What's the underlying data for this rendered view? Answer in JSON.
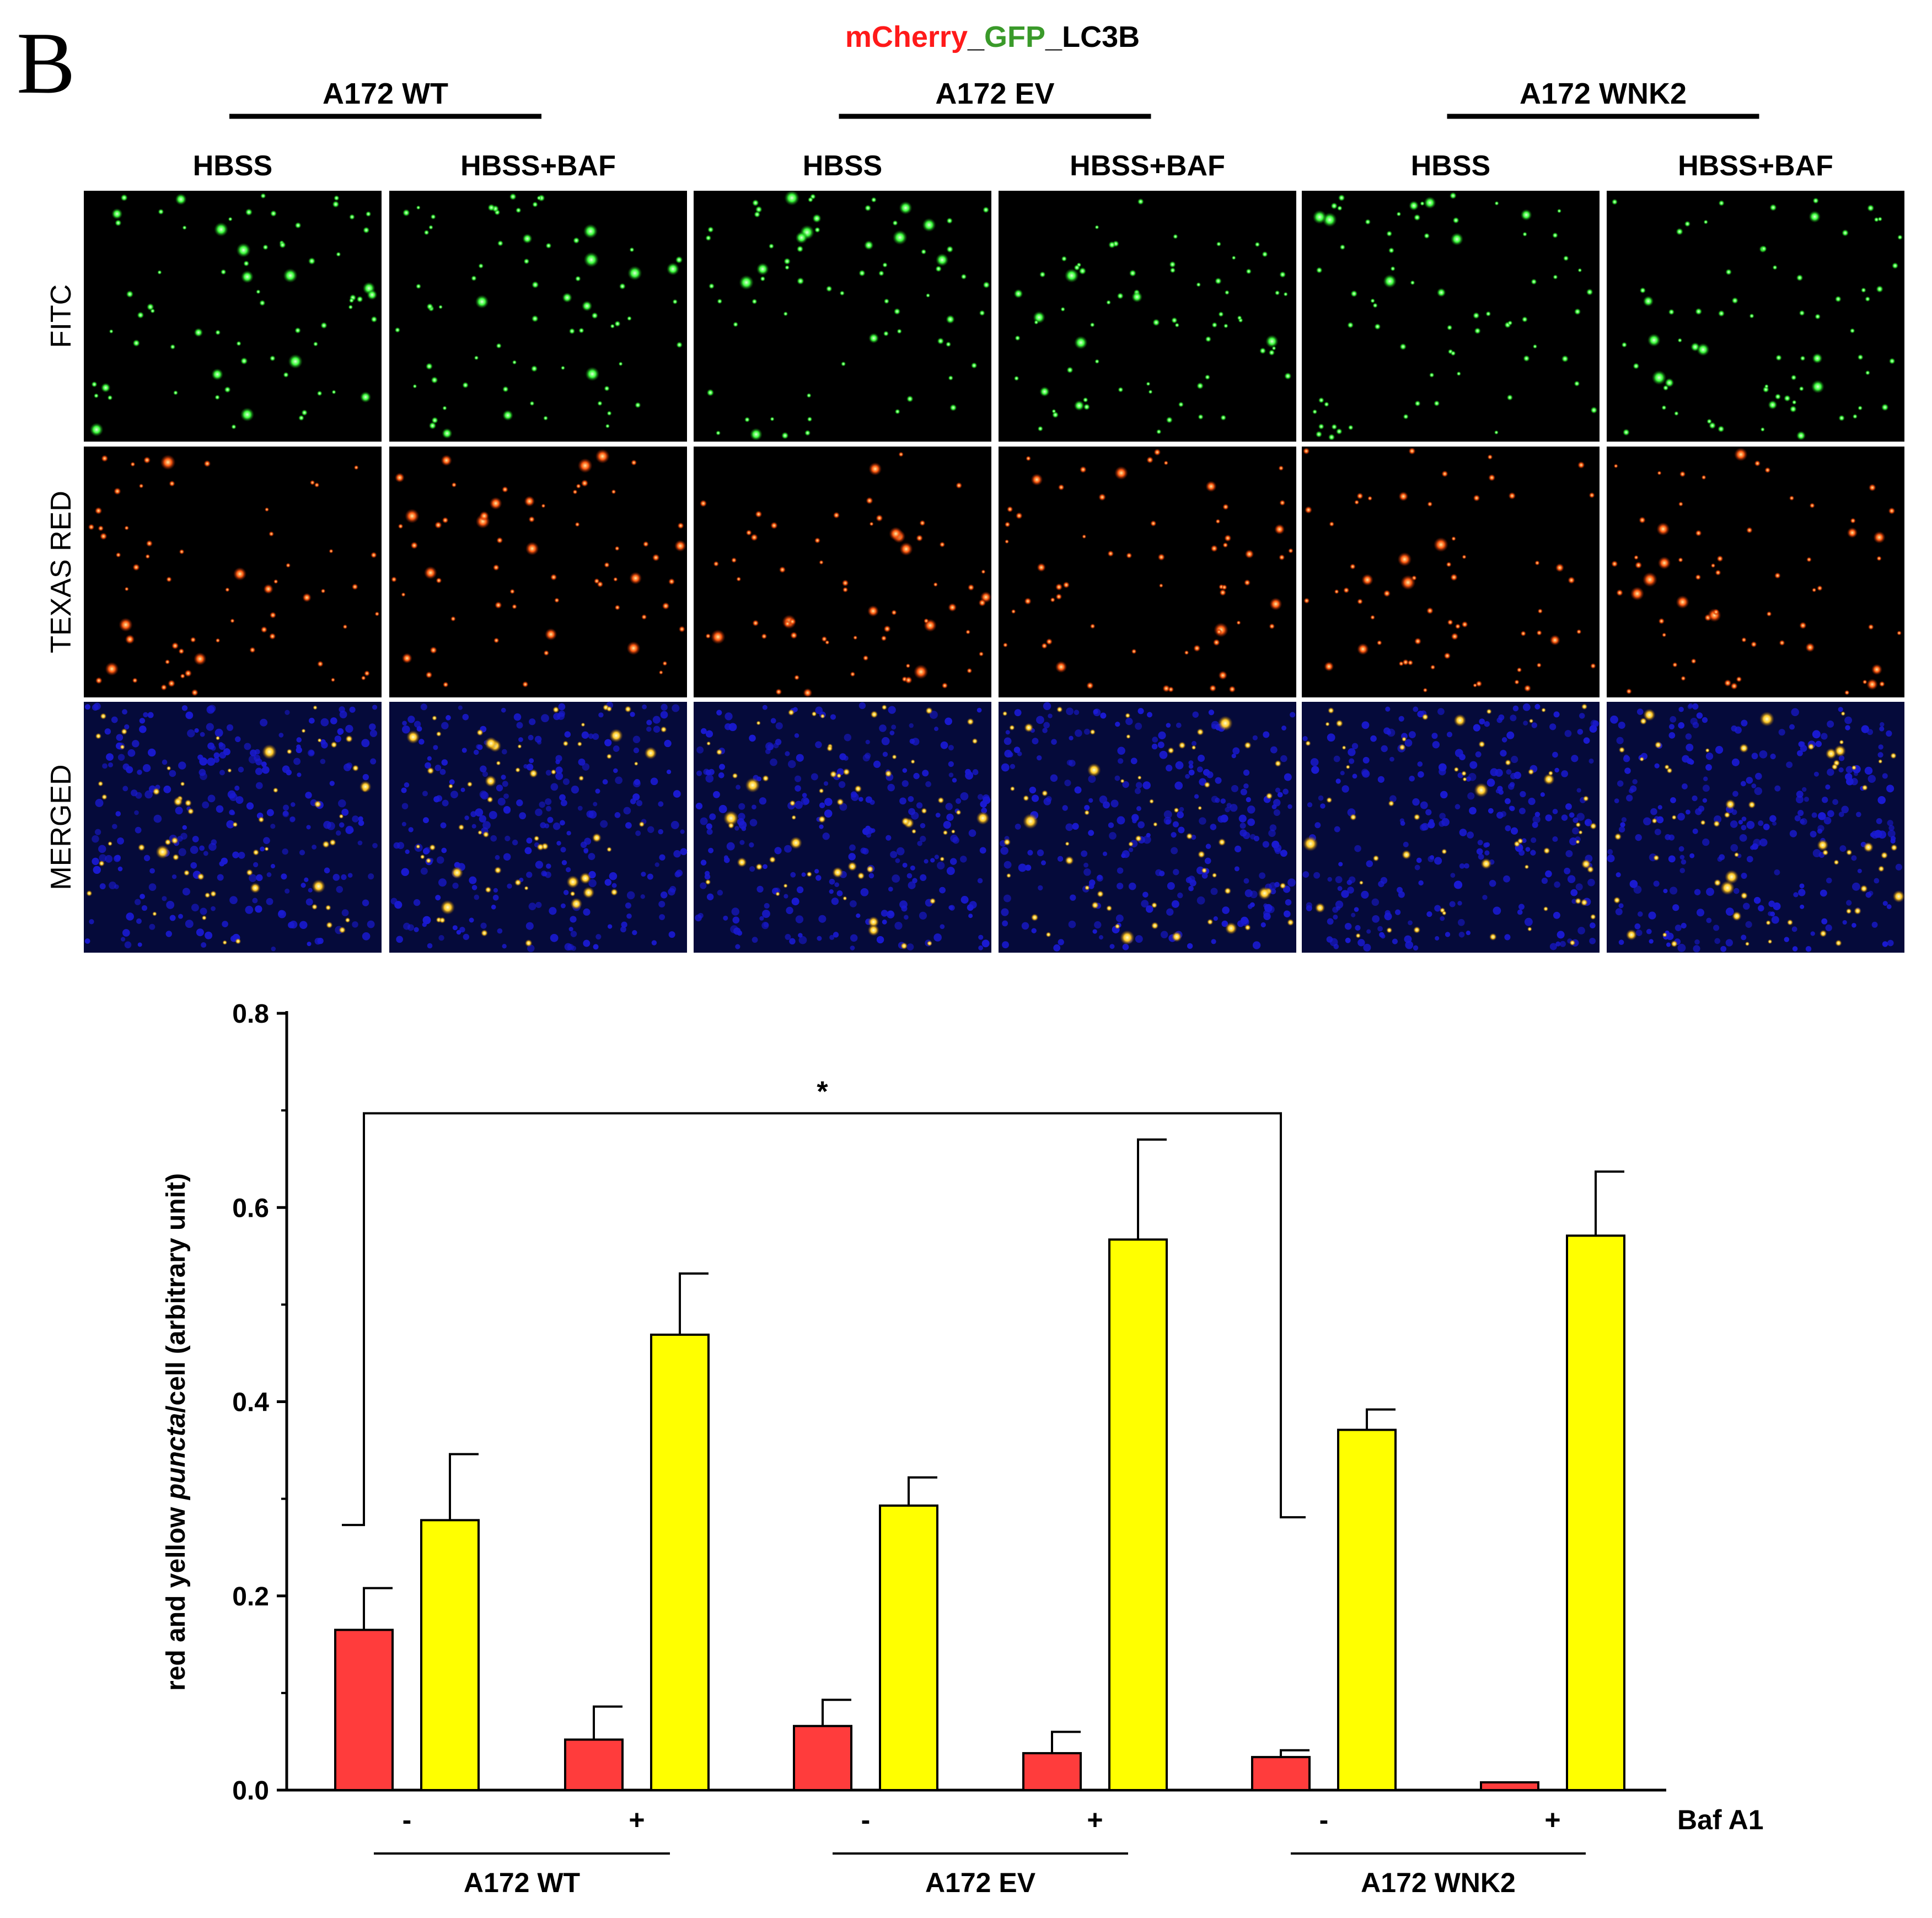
{
  "panel_letter": "B",
  "construct": {
    "part1": "mCherry",
    "sep1": "_",
    "part2": "GFP",
    "sep2": "_",
    "part3": "LC3B"
  },
  "colors": {
    "mcherry": "#ff1a1a",
    "gfp": "#3a9a2a",
    "red_bar": "#ff3c3c",
    "yellow_bar": "#ffff00",
    "fitc_dot": "#3cff3c",
    "texas_dot": "#ff5a10",
    "dapi": "#1a1ad2",
    "merged_dot": "#ffc828"
  },
  "microscopy": {
    "groups": [
      {
        "label": "A172 WT"
      },
      {
        "label": "A172 EV"
      },
      {
        "label": "A172 WNK2"
      }
    ],
    "conditions": [
      "HBSS",
      "HBSS+BAF",
      "HBSS",
      "HBSS+BAF",
      "HBSS",
      "HBSS+BAF"
    ],
    "rows": [
      {
        "label": "FITC",
        "channel": "fitc"
      },
      {
        "label": "TEXAS RED",
        "channel": "texas"
      },
      {
        "label": "MERGED",
        "channel": "merged"
      }
    ]
  },
  "chart_data": {
    "type": "bar",
    "ylabel_parts": [
      "red and yellow ",
      "puncta",
      "/cell (arbitrary unit)"
    ],
    "ylim": [
      0,
      0.8
    ],
    "yticks": [
      "0.0",
      "0.2",
      "0.4",
      "0.6",
      "0.8"
    ],
    "grid": false,
    "baf_label": "Baf A1",
    "categories": [
      {
        "group": "A172 WT",
        "baf": "-",
        "red": 0.165,
        "red_err": 0.043,
        "yellow": 0.278,
        "yellow_err": 0.068
      },
      {
        "group": "A172 WT",
        "baf": "+",
        "red": 0.052,
        "red_err": 0.034,
        "yellow": 0.469,
        "yellow_err": 0.063
      },
      {
        "group": "A172 EV",
        "baf": "-",
        "red": 0.066,
        "red_err": 0.027,
        "yellow": 0.293,
        "yellow_err": 0.029
      },
      {
        "group": "A172 EV",
        "baf": "+",
        "red": 0.038,
        "red_err": 0.022,
        "yellow": 0.567,
        "yellow_err": 0.103
      },
      {
        "group": "A172 WNK2",
        "baf": "-",
        "red": 0.034,
        "red_err": 0.007,
        "yellow": 0.371,
        "yellow_err": 0.021
      },
      {
        "group": "A172 WNK2",
        "baf": "+",
        "red": 0.008,
        "red_err": 0.0,
        "yellow": 0.571,
        "yellow_err": 0.066
      }
    ],
    "groups": [
      "A172 WT",
      "A172 EV",
      "A172 WNK2"
    ],
    "significance": {
      "label": "*",
      "from_category": 0,
      "to_category": 4,
      "bar_y": 0.697,
      "left_drop_y": 0.273,
      "right_drop_y": 0.281
    }
  }
}
